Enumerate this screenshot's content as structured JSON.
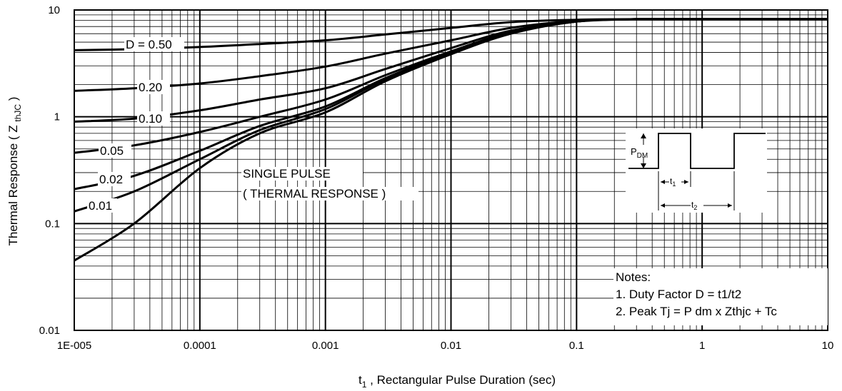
{
  "chart_data": {
    "type": "line",
    "xlabel_main": "t",
    "xlabel_sub": "1",
    "xlabel_rest": " , Rectangular Pulse Duration (sec)",
    "ylabel_main": "Thermal Response ( Z ",
    "ylabel_sub": "thJC",
    "ylabel_end": " )",
    "x_scale": "log",
    "y_scale": "log",
    "xlim": [
      1e-05,
      10
    ],
    "ylim": [
      0.01,
      10
    ],
    "grid": true,
    "x_ticks": [
      "1E-005",
      "0.0001",
      "0.001",
      "0.01",
      "0.1",
      "1",
      "10"
    ],
    "y_ticks": [
      "0.01",
      "0.1",
      "1",
      "10"
    ],
    "series": [
      {
        "name": "D = 0.50",
        "x": [
          1e-05,
          3e-05,
          0.0001,
          0.0003,
          0.001,
          0.003,
          0.01,
          0.03,
          0.1,
          0.3,
          1,
          10
        ],
        "y": [
          4.2,
          4.3,
          4.5,
          4.8,
          5.2,
          5.9,
          6.8,
          7.7,
          8.1,
          8.2,
          8.2,
          8.2
        ]
      },
      {
        "name": "0.20",
        "x": [
          1e-05,
          3e-05,
          0.0001,
          0.0003,
          0.001,
          0.003,
          0.01,
          0.03,
          0.1,
          0.3,
          1,
          10
        ],
        "y": [
          1.75,
          1.85,
          2.05,
          2.4,
          2.95,
          3.9,
          5.2,
          6.8,
          7.9,
          8.2,
          8.2,
          8.2
        ]
      },
      {
        "name": "0.10",
        "x": [
          1e-05,
          3e-05,
          0.0001,
          0.0003,
          0.001,
          0.003,
          0.01,
          0.03,
          0.1,
          0.3,
          1,
          10
        ],
        "y": [
          0.9,
          0.96,
          1.15,
          1.45,
          1.85,
          2.8,
          4.4,
          6.4,
          7.8,
          8.2,
          8.2,
          8.2
        ]
      },
      {
        "name": "0.05",
        "x": [
          1e-05,
          3e-05,
          0.0001,
          0.0003,
          0.001,
          0.003,
          0.01,
          0.03,
          0.1,
          0.3,
          1,
          10
        ],
        "y": [
          0.46,
          0.54,
          0.72,
          1.0,
          1.45,
          2.45,
          4.1,
          6.2,
          7.8,
          8.2,
          8.2,
          8.2
        ]
      },
      {
        "name": "0.02",
        "x": [
          1e-05,
          3e-05,
          0.0001,
          0.0003,
          0.001,
          0.003,
          0.01,
          0.03,
          0.1,
          0.3,
          1,
          10
        ],
        "y": [
          0.21,
          0.28,
          0.48,
          0.82,
          1.25,
          2.3,
          4.0,
          6.1,
          7.8,
          8.2,
          8.2,
          8.2
        ]
      },
      {
        "name": "0.01",
        "x": [
          1e-05,
          3e-05,
          0.0001,
          0.0003,
          0.001,
          0.003,
          0.01,
          0.03,
          0.1,
          0.3,
          1,
          10
        ],
        "y": [
          0.13,
          0.2,
          0.4,
          0.75,
          1.18,
          2.25,
          3.95,
          6.1,
          7.8,
          8.2,
          8.2,
          8.2
        ]
      },
      {
        "name": "SINGLE PULSE",
        "x": [
          1e-05,
          3e-05,
          0.0001,
          0.0003,
          0.001,
          0.003,
          0.01,
          0.03,
          0.1,
          0.3,
          1,
          10
        ],
        "y": [
          0.045,
          0.1,
          0.33,
          0.7,
          1.1,
          2.15,
          3.85,
          6.0,
          7.8,
          8.2,
          8.2,
          8.2
        ]
      }
    ],
    "single_pulse_line1": "SINGLE PULSE",
    "single_pulse_line2": "( THERMAL RESPONSE )",
    "notes_title": "Notes:",
    "note1": "1. Duty Factor D = t1/t2",
    "note2": "2. Peak Tj = P dm x Zthjc + Tc",
    "inset_pdm_main": "P",
    "inset_pdm_sub": "DM",
    "inset_t1_main": "t",
    "inset_t1_sub": "1",
    "inset_t2_main": "t",
    "inset_t2_sub": "2"
  }
}
